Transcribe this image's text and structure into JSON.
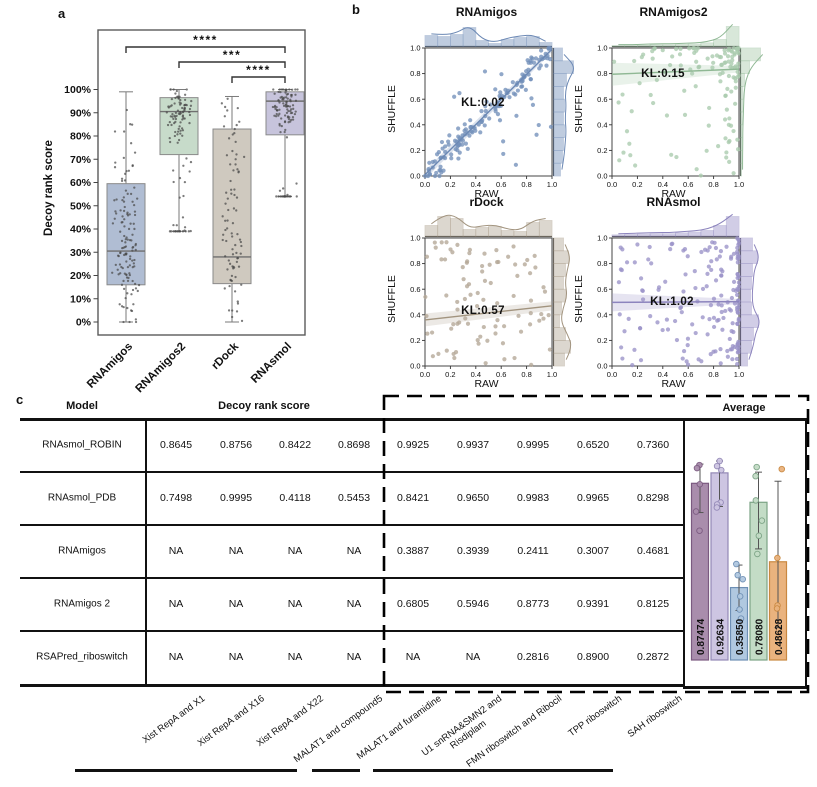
{
  "figure": {
    "panel_labels": {
      "a": "a",
      "b": "b",
      "c": "c"
    }
  },
  "chart_data": {
    "boxplot": {
      "type": "box",
      "ylabel": "Decoy rank score",
      "ytick_labels": [
        "0%",
        "10%",
        "20%",
        "30%",
        "40%",
        "50%",
        "60%",
        "70%",
        "80%",
        "90%",
        "100%"
      ],
      "categories": [
        "RNAmigos",
        "RNAmigos2",
        "rDock",
        "RNAsmol"
      ],
      "boxes": [
        {
          "name": "RNAmigos",
          "fill": "#b0bdd3",
          "whisker_low": 0,
          "q1": 16,
          "median": 30.5,
          "q3": 59.5,
          "whisker_high": 99,
          "points_n": 130,
          "dist": {
            "gauss": [
              34,
              17
            ],
            "gauss_frac": 0.8,
            "uniform": [
              0,
              99
            ]
          }
        },
        {
          "name": "RNAmigos2",
          "fill": "#c7dbca",
          "whisker_low": 39,
          "q1": 72,
          "median": 90.5,
          "q3": 96.5,
          "whisker_high": 100,
          "points_n": 110,
          "dist": {
            "gauss": [
              89,
              7
            ],
            "gauss_frac": 0.74,
            "uniform": [
              2,
              74
            ]
          }
        },
        {
          "name": "rDock",
          "fill": "#cfc9bf",
          "whisker_low": 0,
          "q1": 16.5,
          "median": 28,
          "q3": 83,
          "whisker_high": 97,
          "points_n": 85,
          "dist": {
            "gauss": [
              30,
              14
            ],
            "gauss_frac": 0.45,
            "uniform": [
              0,
              97
            ]
          }
        },
        {
          "name": "RNAsmol",
          "fill": "#c7c4dc",
          "whisker_low": 54,
          "q1": 80.5,
          "median": 95,
          "q3": 99,
          "whisker_high": 100,
          "points_n": 110,
          "dist": {
            "gauss": [
              93,
              5
            ],
            "gauss_frac": 0.74,
            "uniform": [
              1,
              60
            ]
          }
        }
      ],
      "significance": [
        {
          "from": 0,
          "to": 3,
          "label": "****"
        },
        {
          "from": 1,
          "to": 3,
          "label": "***"
        },
        {
          "from": 2,
          "to": 3,
          "label": "****"
        }
      ]
    },
    "jointplots": [
      {
        "title": "RNAmigos",
        "kl": "KL:0.02",
        "xlabel": "RAW",
        "ylabel": "SHUFFLE",
        "color": "#7290ba",
        "stroke": "#6b88b4",
        "pattern": "diagonal",
        "n": 160,
        "trend": [
          0,
          0.01,
          1,
          0.99
        ],
        "band": [
          0.035,
          0.02
        ],
        "kl_pos": [
          0.46,
          0.57
        ],
        "xtick_labels": [
          "0.0",
          "0.2",
          "0.4",
          "0.6",
          "0.8",
          "1.0"
        ],
        "ytick_labels": [
          "0.0",
          "0.2",
          "0.4",
          "0.6",
          "0.8",
          "1.0"
        ],
        "hist_top": [
          0.55,
          0.5,
          0.6,
          0.95,
          0.3,
          0.15,
          0.35,
          0.45,
          0.5,
          0.2
        ],
        "hist_right": [
          0.35,
          0.45,
          0.5,
          0.55,
          0.5,
          0.55,
          0.5,
          0.65,
          1.0,
          0.45
        ]
      },
      {
        "title": "RNAmigos2",
        "kl": "KL:0.15",
        "xlabel": "RAW",
        "ylabel": "SHUFFLE",
        "color": "#a9cbad",
        "stroke": "#8fb894",
        "pattern": "topheavy",
        "n": 120,
        "trend": [
          0,
          0.795,
          1,
          0.835
        ],
        "band": [
          0.09,
          0.025
        ],
        "kl_pos": [
          0.4,
          0.8
        ],
        "xtick_labels": [
          "0.0",
          "0.2",
          "0.4",
          "0.6",
          "0.8",
          "1.0"
        ],
        "ytick_labels": [
          "0.0",
          "0.2",
          "0.4",
          "0.6",
          "0.8",
          "1.0"
        ],
        "hist_top": [
          0.04,
          0.04,
          0.06,
          0.08,
          0.08,
          0.1,
          0.12,
          0.18,
          0.35,
          1.0
        ],
        "hist_right": [
          0.05,
          0.05,
          0.06,
          0.06,
          0.08,
          0.1,
          0.12,
          0.2,
          0.45,
          1.0
        ]
      },
      {
        "title": "rDock",
        "kl": "KL:0.57",
        "xlabel": "RAW",
        "ylabel": "SHUFFLE",
        "color": "#b3a796",
        "stroke": "#a2947f",
        "pattern": "uniform",
        "n": 88,
        "trend": [
          0,
          0.36,
          1,
          0.47
        ],
        "band": [
          0.05,
          0.035
        ],
        "kl_pos": [
          0.46,
          0.43
        ],
        "xtick_labels": [
          "0.0",
          "0.2",
          "0.4",
          "0.6",
          "0.8",
          "1.0"
        ],
        "ytick_labels": [
          "0.0",
          "0.2",
          "0.4",
          "0.6",
          "0.8",
          "1.0"
        ],
        "hist_top": [
          0.55,
          1.0,
          0.9,
          0.35,
          0.45,
          0.5,
          0.3,
          0.25,
          0.7,
          0.8
        ],
        "hist_right": [
          0.55,
          0.85,
          0.6,
          0.3,
          0.4,
          0.6,
          0.5,
          0.6,
          0.75,
          0.5
        ]
      },
      {
        "title": "RNAsmol",
        "kl": "KL:1.02",
        "xlabel": "RAW",
        "ylabel": "SHUFFLE",
        "color": "#9a92c8",
        "stroke": "#8c84bd",
        "pattern": "rightheavy",
        "n": 170,
        "trend": [
          0,
          0.497,
          1,
          0.503
        ],
        "band": [
          0.07,
          0.02
        ],
        "kl_pos": [
          0.47,
          0.5
        ],
        "xtick_labels": [
          "0.0",
          "0.2",
          "0.4",
          "0.6",
          "0.8",
          "1.0"
        ],
        "ytick_labels": [
          "0.0",
          "0.2",
          "0.4",
          "0.6",
          "0.8",
          "1.0"
        ],
        "hist_top": [
          0.08,
          0.1,
          0.12,
          0.14,
          0.14,
          0.18,
          0.22,
          0.3,
          0.55,
          1.0
        ],
        "hist_right": [
          0.35,
          0.55,
          0.65,
          0.9,
          0.55,
          0.5,
          0.55,
          0.6,
          0.85,
          0.6
        ]
      }
    ],
    "table": {
      "headers": {
        "model": "Model",
        "decoy": "Decoy rank score",
        "average": "Average"
      },
      "rows": [
        {
          "model": "RNAsmol_ROBIN",
          "decoy_values": [
            "0.8645",
            "0.8756",
            "0.8422",
            "0.8698"
          ],
          "dashed_values": [
            "0.9925",
            "0.9937",
            "0.9995",
            "0.6520",
            "0.7360"
          ]
        },
        {
          "model": "RNAsmol_PDB",
          "decoy_values": [
            "0.7498",
            "0.9995",
            "0.4118",
            "0.5453"
          ],
          "dashed_values": [
            "0.8421",
            "0.9650",
            "0.9983",
            "0.9965",
            "0.8298"
          ]
        },
        {
          "model": "RNAmigos",
          "decoy_values": [
            "NA",
            "NA",
            "NA",
            "NA"
          ],
          "dashed_values": [
            "0.3887",
            "0.3939",
            "0.2411",
            "0.3007",
            "0.4681"
          ]
        },
        {
          "model": "RNAmigos 2",
          "decoy_values": [
            "NA",
            "NA",
            "NA",
            "NA"
          ],
          "dashed_values": [
            "0.6805",
            "0.5946",
            "0.8773",
            "0.9391",
            "0.8125"
          ]
        },
        {
          "model": "RSAPred_riboswitch",
          "decoy_values": [
            "NA",
            "NA",
            "NA",
            "NA"
          ],
          "dashed_values": [
            "NA",
            "NA",
            "0.2816",
            "0.8900",
            "0.2872"
          ]
        }
      ],
      "column_labels": [
        "Xist RepA and X1",
        "Xist RepA and X16",
        "Xist RepA and X22",
        "MALAT1 and compound5",
        "MALAT1 and furamidine",
        "U1 snRNA&SMN2 and\nRisdiplam",
        "FMN riboswitch and Ribocil",
        "TPP riboswitch",
        "SAH riboswitch"
      ]
    },
    "average_bars": {
      "type": "bar",
      "title": "Average",
      "ylim": [
        0,
        1.05
      ],
      "values": [
        0.87474,
        0.92634,
        0.3585,
        0.7808,
        0.48628
      ],
      "labels": [
        "0.87474",
        "0.92634",
        "0.35850",
        "0.78080",
        "0.48628"
      ],
      "fills": [
        "#a98dac",
        "#cdc5e2",
        "#b0c8e0",
        "#c3dcc6",
        "#eab37e"
      ],
      "strokes": [
        "#7b5a80",
        "#9388b6",
        "#6d8fb5",
        "#7ba385",
        "#c98840"
      ],
      "errors": [
        [
          0.73,
          0.97
        ],
        [
          0.76,
          0.985
        ],
        [
          0.245,
          0.47
        ],
        [
          0.55,
          0.93
        ],
        [
          0.16,
          0.885
        ]
      ],
      "dots": [
        [
          0.965,
          0.95,
          0.87,
          0.735,
          0.64
        ],
        [
          0.985,
          0.96,
          0.94,
          0.78,
          0.77,
          0.755
        ],
        [
          0.475,
          0.42,
          0.4,
          0.315,
          0.25,
          0.205
        ],
        [
          0.955,
          0.91,
          0.79,
          0.69,
          0.615,
          0.525
        ],
        [
          0.945,
          0.505,
          0.27,
          0.255
        ]
      ]
    }
  }
}
